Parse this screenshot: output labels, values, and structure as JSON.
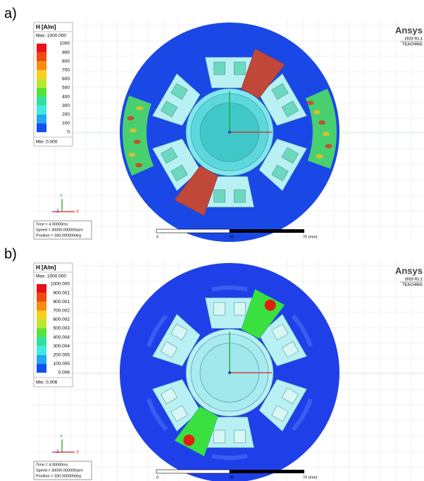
{
  "panels": [
    {
      "label": "a)",
      "legend": {
        "title": "H [A/m]",
        "max": "Max: 1000.000",
        "ticks": [
          "1000",
          "900",
          "800",
          "700",
          "600",
          "500",
          "400",
          "300",
          "200",
          "100",
          "0"
        ],
        "min": "Min: 0.000"
      },
      "logo": {
        "name": "Ansys",
        "version": "2023 R1.1",
        "edition": "TEACHING"
      },
      "triad": [
        "Y",
        "Z",
        "X"
      ],
      "info": [
        "Time = 4.00000ms",
        "Speed = 30000.000000rpm",
        "Position = 330.000000deg"
      ],
      "scale": [
        "0",
        "35",
        "70 (mm)"
      ]
    },
    {
      "label": "b)",
      "legend": {
        "title": "H [A/m]",
        "max": "Max: 1000.000",
        "ticks": [
          "1000.000",
          "900.001",
          "800.001",
          "700.002",
          "600.002",
          "500.003",
          "400.004",
          "300.004",
          "200.005",
          "100.005",
          "0.006"
        ],
        "min": "Min: 0.006"
      },
      "logo": {
        "name": "Ansys",
        "version": "2023 R1.1",
        "edition": "TEACHING"
      },
      "triad": [
        "Y",
        "Z",
        "X"
      ],
      "info": [
        "Time = 4.00000ms",
        "Speed = 30000.000000rpm",
        "Position = 330.000000deg"
      ],
      "scale": [
        "0",
        "35",
        "70 (mm)"
      ]
    }
  ]
}
